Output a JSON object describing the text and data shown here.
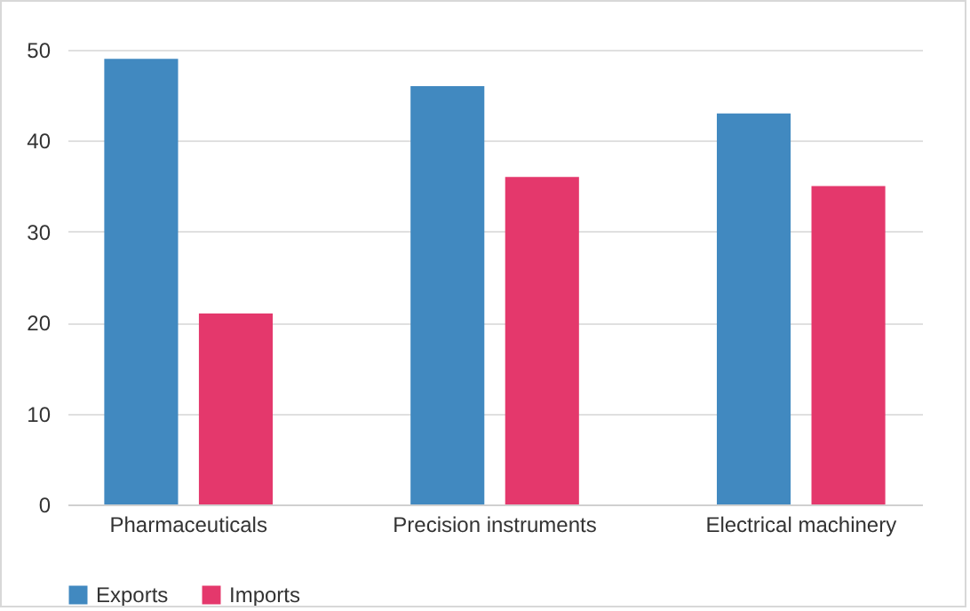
{
  "chart_data": {
    "type": "bar",
    "categories": [
      "Pharmaceuticals",
      "Precision instruments",
      "Electrical machinery"
    ],
    "series": [
      {
        "name": "Exports",
        "color": "#4189c0",
        "values": [
          49,
          46,
          43
        ]
      },
      {
        "name": "Imports",
        "color": "#e4386c",
        "values": [
          21,
          36,
          35
        ]
      }
    ],
    "ylim": [
      0,
      50
    ],
    "yticks": [
      0,
      10,
      20,
      30,
      40,
      50
    ],
    "grid": "y",
    "legend": "bottom"
  }
}
